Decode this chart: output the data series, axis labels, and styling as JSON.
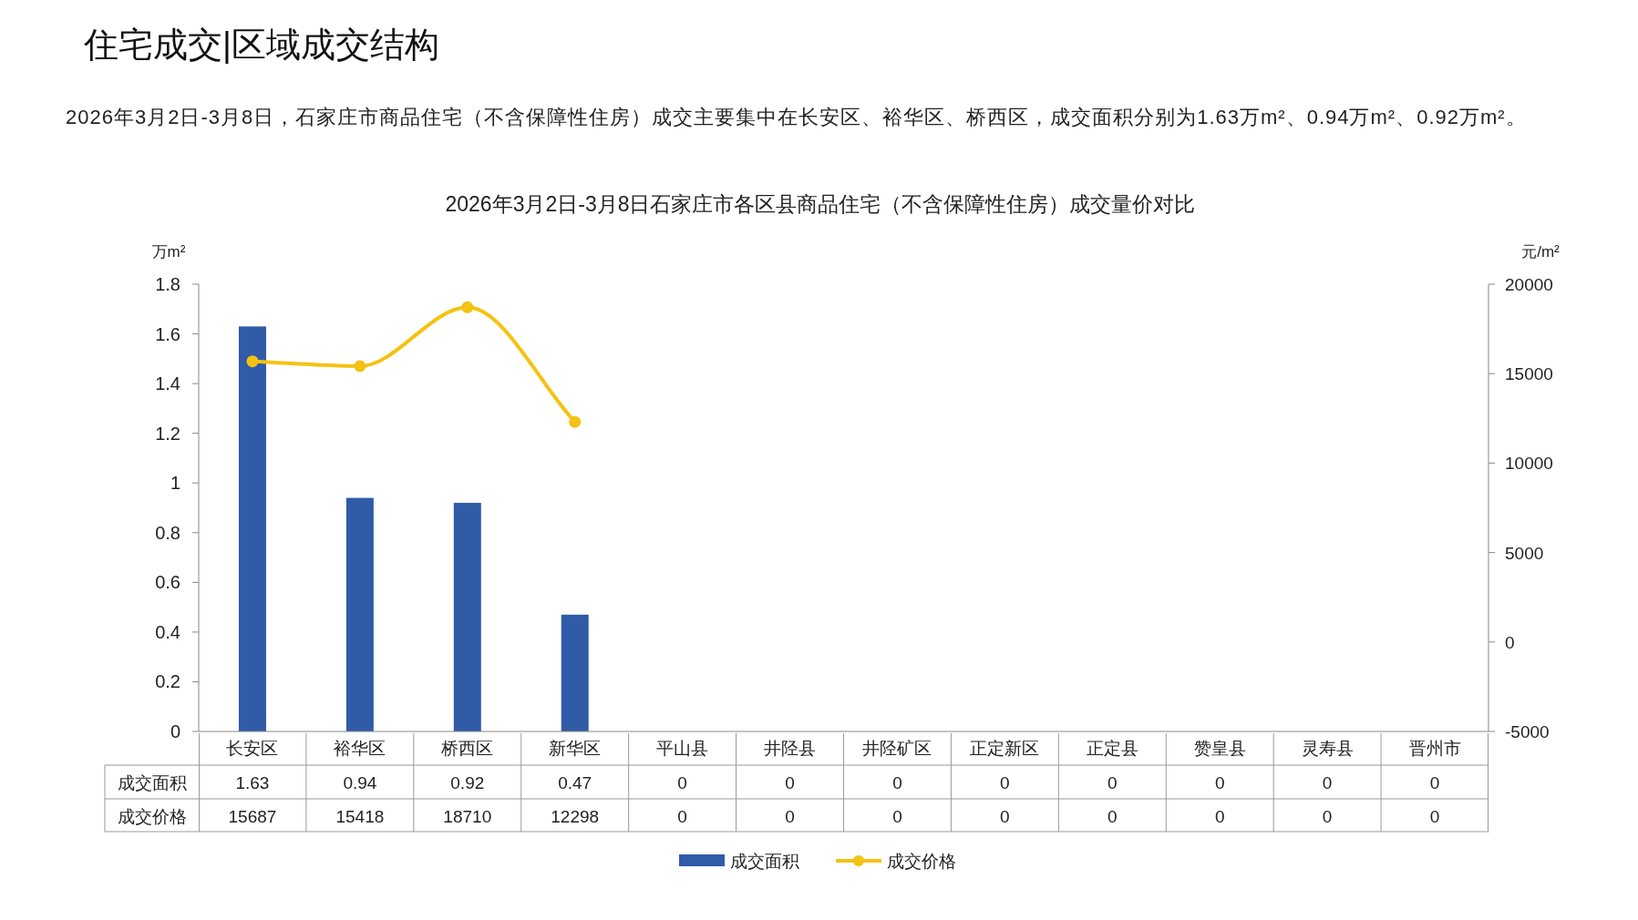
{
  "chart_data": {
    "type": "bar",
    "title": "2026年3月2日-3月8日石家庄市各区县商品住宅（不含保障性住房）成交量价对比",
    "subtitle": "2026年3月2日-3月8日，石家庄市商品住宅（不含保障性住房）成交主要集中在长安区、裕华区、桥西区，成交面积分别为1.63万m²、0.94万m²、0.92万m²。",
    "annotations": [
      "住宅成交|区域成交结构"
    ],
    "ylabel": "万m²",
    "y2label": "元/m²",
    "categories": [
      "长安区",
      "裕华区",
      "桥西区",
      "新华区",
      "平山县",
      "井陉县",
      "井陉矿区",
      "正定新区",
      "正定县",
      "赞皇县",
      "灵寿县",
      "晋州市"
    ],
    "series": [
      {
        "name": "成交面积",
        "color": "#2f5ba7",
        "values": [
          1.63,
          0.94,
          0.92,
          0.47,
          0,
          0,
          0,
          0,
          0,
          0,
          0,
          0
        ],
        "value_labels": [
          "1.63",
          "0.94",
          "0.92",
          "0.47",
          "0",
          "0",
          "0",
          "0",
          "0",
          "0",
          "0",
          "0"
        ]
      },
      {
        "name": "成交价格",
        "type": "line",
        "axis": "y2",
        "color": "#f5c211",
        "values": [
          15687,
          15418,
          18710,
          12298,
          null,
          null,
          null,
          null,
          null,
          null,
          null,
          null
        ],
        "value_labels": [
          "15687",
          "15418",
          "18710",
          "12298",
          "0",
          "0",
          "0",
          "0",
          "0",
          "0",
          "0",
          "0"
        ]
      }
    ],
    "ylim": [
      0,
      1.8
    ],
    "yticks": [
      0,
      0.2,
      0.4,
      0.6,
      0.8,
      1,
      1.2,
      1.4,
      1.6,
      1.8
    ],
    "y2lim": [
      -5000,
      20000
    ],
    "y2ticks": [
      -5000,
      0,
      5000,
      10000,
      15000,
      20000
    ],
    "marker": "circle",
    "legend": "bottom"
  }
}
